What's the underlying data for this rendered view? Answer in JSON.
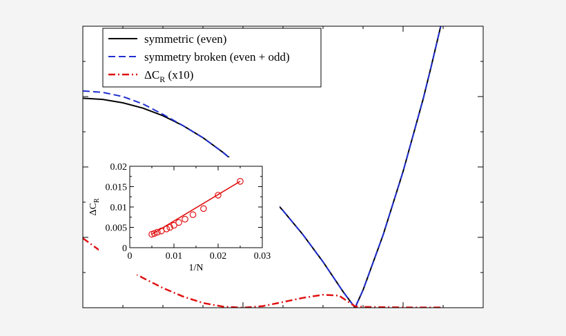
{
  "chart_data": [
    {
      "type": "line",
      "legend_position": "top-left",
      "series": [
        {
          "name": "symmetric (even)",
          "color": "#000000",
          "style": "solid",
          "points": [
            [
              0.0,
              0.744
            ],
            [
              0.05,
              0.74
            ],
            [
              0.1,
              0.728
            ],
            [
              0.15,
              0.709
            ],
            [
              0.2,
              0.682
            ],
            [
              0.25,
              0.647
            ],
            [
              0.3,
              0.604
            ],
            [
              0.35,
              0.552
            ],
            [
              0.4,
              0.492
            ],
            [
              0.45,
              0.423
            ],
            [
              0.5,
              0.345
            ],
            [
              0.55,
              0.259
            ],
            [
              0.6,
              0.163
            ],
            [
              0.65,
              0.057
            ],
            [
              0.68,
              0.0
            ],
            [
              0.7,
              0.063
            ],
            [
              0.75,
              0.258
            ],
            [
              0.8,
              0.484
            ],
            [
              0.85,
              0.741
            ],
            [
              0.87,
              0.856
            ],
            [
              0.894,
              1.0
            ]
          ]
        },
        {
          "name": "symmetry broken (even + odd)",
          "color": "#1f2fd0",
          "style": "dashed",
          "points": [
            [
              0.0,
              0.77
            ],
            [
              0.05,
              0.765
            ],
            [
              0.1,
              0.75
            ],
            [
              0.15,
              0.724
            ],
            [
              0.2,
              0.687
            ],
            [
              0.25,
              0.647
            ],
            [
              0.3,
              0.604
            ],
            [
              0.35,
              0.552
            ],
            [
              0.4,
              0.492
            ],
            [
              0.45,
              0.423
            ],
            [
              0.5,
              0.345
            ],
            [
              0.55,
              0.259
            ],
            [
              0.6,
              0.163
            ],
            [
              0.65,
              0.057
            ],
            [
              0.68,
              0.0
            ],
            [
              0.7,
              0.063
            ],
            [
              0.75,
              0.258
            ],
            [
              0.8,
              0.484
            ],
            [
              0.85,
              0.741
            ],
            [
              0.87,
              0.856
            ],
            [
              0.894,
              1.0
            ]
          ]
        },
        {
          "name": "ΔC",
          "name_subscript": "R",
          "name_suffix": " (x10)",
          "color": "#e01010",
          "style": "dashdot",
          "points": [
            [
              0.0,
              0.247
            ],
            [
              0.05,
              0.195
            ],
            [
              0.1,
              0.148
            ],
            [
              0.15,
              0.106
            ],
            [
              0.2,
              0.07
            ],
            [
              0.25,
              0.04
            ],
            [
              0.3,
              0.017
            ],
            [
              0.35,
              0.004
            ],
            [
              0.4,
              0.0
            ],
            [
              0.45,
              0.006
            ],
            [
              0.5,
              0.02
            ],
            [
              0.55,
              0.035
            ],
            [
              0.6,
              0.046
            ],
            [
              0.64,
              0.043
            ],
            [
              0.68,
              0.005
            ],
            [
              0.7,
              0.003
            ],
            [
              0.75,
              0.002
            ],
            [
              0.8,
              0.001
            ],
            [
              0.9,
              0.001
            ]
          ]
        }
      ],
      "xlim": [
        0,
        1
      ],
      "ylim": [
        0,
        1
      ]
    },
    {
      "type": "scatter",
      "xlabel": "1/N",
      "ylabel": "ΔC",
      "ylabel_subscript": "R",
      "xlim": [
        0,
        0.03
      ],
      "ylim": [
        0,
        0.02
      ],
      "x_ticks": [
        "0",
        "0.01",
        "0.02",
        "0.03"
      ],
      "y_ticks": [
        "0",
        "0.005",
        "0.01",
        "0.015",
        "0.02"
      ],
      "series": [
        {
          "color": "#e01010",
          "x": [
            0.005,
            0.00556,
            0.00625,
            0.00714,
            0.00833,
            0.00909,
            0.01,
            0.0111,
            0.0125,
            0.0143,
            0.0167,
            0.02,
            0.025
          ],
          "y": [
            0.0033,
            0.0035,
            0.0038,
            0.0041,
            0.0046,
            0.005,
            0.0055,
            0.0062,
            0.007,
            0.0081,
            0.0096,
            0.0129,
            0.0163
          ]
        }
      ],
      "fit_line": {
        "x": [
          0.005,
          0.025
        ],
        "y": [
          0.0033,
          0.0163
        ]
      }
    }
  ]
}
